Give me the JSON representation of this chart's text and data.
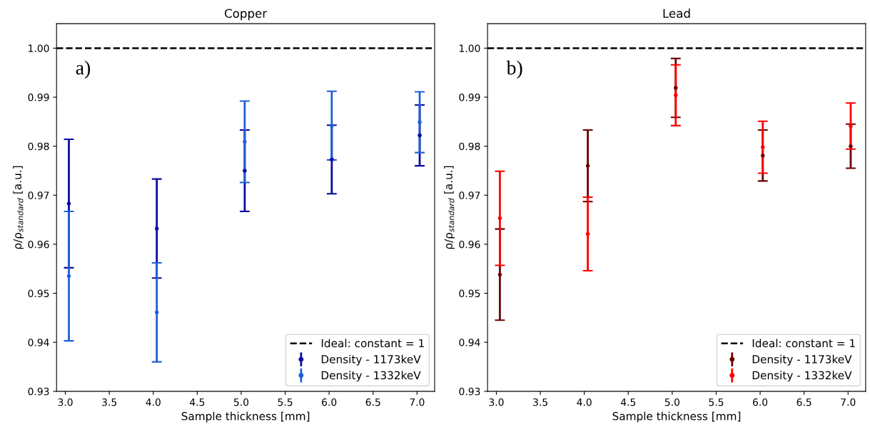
{
  "chart_data": [
    {
      "type": "scatter",
      "title": "Copper",
      "xlabel": "Sample thickness [mm]",
      "ylabel": "ρ/ρ$_{standard}$ [a.u.]",
      "annotations": [
        "a)"
      ],
      "xlim": [
        2.9,
        7.2
      ],
      "ylim": [
        0.93,
        1.005
      ],
      "xticks": [
        {
          "value": 3,
          "label": "3.0"
        },
        3.5,
        {
          "value": 4,
          "label": "4.0"
        },
        4.5,
        {
          "value": 5,
          "label": "5.0"
        },
        5.5,
        {
          "value": 6,
          "label": "6.0"
        },
        6.5,
        {
          "value": 7,
          "label": "7.0"
        }
      ],
      "yticks": [
        0.93,
        0.94,
        0.95,
        0.96,
        0.97,
        0.98,
        0.99,
        {
          "value": 1,
          "label": "1.00"
        }
      ],
      "x": [
        3.04,
        4.04,
        5.04,
        6.03,
        7.03
      ],
      "marker": "circle",
      "legend": "bottom right",
      "grid": false,
      "ref_lines": [
        {
          "axis": "y",
          "value": 1.0,
          "label": "Ideal: constant = 1",
          "color": "#000000",
          "line_style": "dashed"
        }
      ],
      "series": [
        {
          "name": "Density - 1173keV",
          "color": "#0a0aa0",
          "values": [
            0.9683,
            0.9632,
            0.975,
            0.9773,
            0.9822
          ],
          "errors": [
            0.0131,
            0.0101,
            0.0083,
            0.007,
            0.0062
          ]
        },
        {
          "name": "Density - 1332keV",
          "color": "#1f5fd6",
          "values": [
            0.9535,
            0.9461,
            0.9809,
            0.9842,
            0.9849
          ],
          "errors": [
            0.0132,
            0.0101,
            0.0083,
            0.007,
            0.0062
          ]
        }
      ]
    },
    {
      "type": "scatter",
      "title": "Lead",
      "xlabel": "Sample thickness [mm]",
      "ylabel": "ρ/ρ$_{standard}$ [a.u.]",
      "annotations": [
        "b)"
      ],
      "xlim": [
        2.9,
        7.2
      ],
      "ylim": [
        0.93,
        1.005
      ],
      "xticks": [
        {
          "value": 3,
          "label": "3.0"
        },
        3.5,
        {
          "value": 4,
          "label": "4.0"
        },
        4.5,
        {
          "value": 5,
          "label": "5.0"
        },
        5.5,
        {
          "value": 6,
          "label": "6.0"
        },
        6.5,
        {
          "value": 7,
          "label": "7.0"
        }
      ],
      "yticks": [
        0.93,
        0.94,
        0.95,
        0.96,
        0.97,
        0.98,
        0.99,
        {
          "value": 1,
          "label": "1.00"
        }
      ],
      "x": [
        3.04,
        4.04,
        5.04,
        6.03,
        7.03
      ],
      "marker": "circle",
      "legend": "bottom right",
      "grid": false,
      "ref_lines": [
        {
          "axis": "y",
          "value": 1.0,
          "label": "Ideal: constant = 1",
          "color": "#000000",
          "line_style": "dashed"
        }
      ],
      "series": [
        {
          "name": "Density - 1173keV",
          "color": "#6b0000",
          "values": [
            0.9538,
            0.976,
            0.9919,
            0.9781,
            0.98
          ],
          "errors": [
            0.0093,
            0.0073,
            0.006,
            0.0052,
            0.0045
          ]
        },
        {
          "name": "Density - 1332keV",
          "color": "#ff0000",
          "values": [
            0.9653,
            0.9621,
            0.9904,
            0.9798,
            0.9841
          ],
          "errors": [
            0.0096,
            0.0075,
            0.0062,
            0.0053,
            0.0047
          ]
        }
      ]
    }
  ]
}
